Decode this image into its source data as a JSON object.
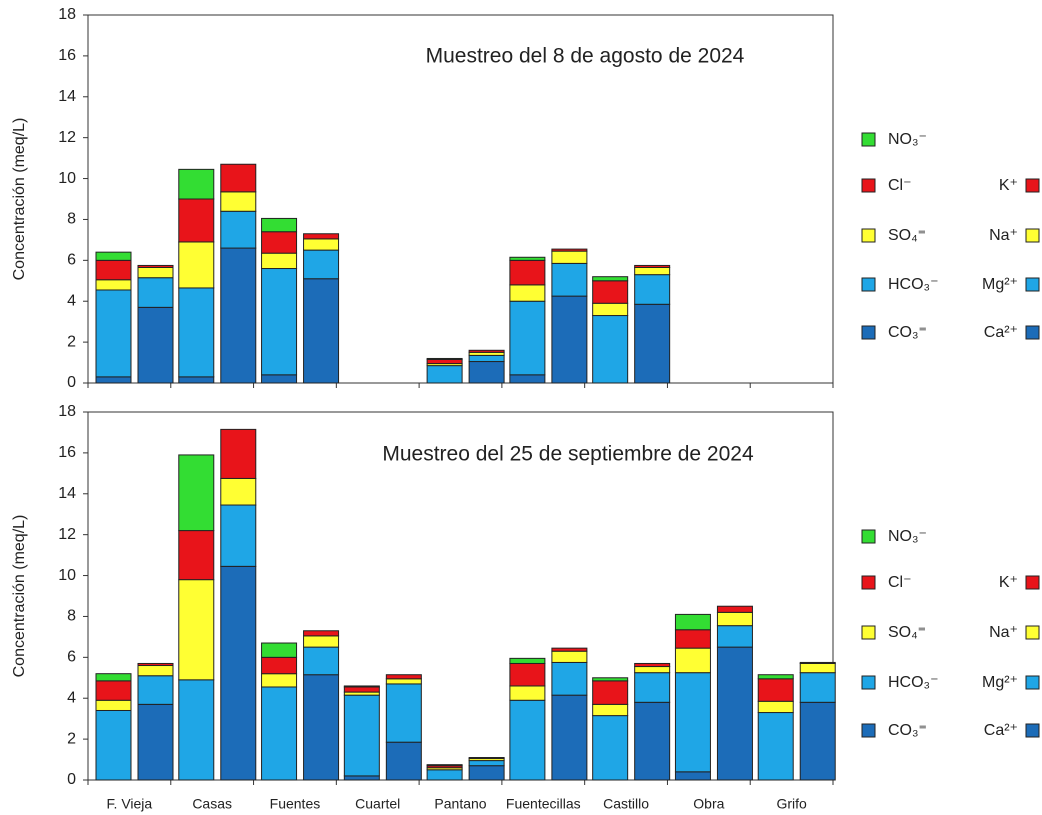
{
  "chart_data": [
    {
      "type": "stacked_bar_pair",
      "title": "Muestreo del 8 de agosto de 2024",
      "ylabel": "Concentración (meq/L)",
      "ylim": [
        0,
        18
      ],
      "yticks": [
        0,
        2,
        4,
        6,
        8,
        10,
        12,
        14,
        16,
        18
      ],
      "anion_series": [
        {
          "name": "CO₃⁼",
          "color": "#1c6cb8",
          "values": [
            0.3,
            0.3,
            0.4,
            null,
            0,
            0.4,
            0,
            null,
            null
          ]
        },
        {
          "name": "HCO₃⁻",
          "color": "#1fa6e6",
          "values": [
            4.25,
            4.35,
            5.2,
            null,
            0.85,
            3.6,
            3.3,
            null,
            null
          ]
        },
        {
          "name": "SO₄⁼",
          "color": "#ffff33",
          "values": [
            0.5,
            2.25,
            0.75,
            null,
            0.1,
            0.8,
            0.6,
            null,
            null
          ]
        },
        {
          "name": "Cl⁻",
          "color": "#e8141a",
          "values": [
            0.95,
            2.1,
            1.05,
            null,
            0.2,
            1.2,
            1.1,
            null,
            null
          ]
        },
        {
          "name": "NO₃⁻",
          "color": "#33dd33",
          "values": [
            0.4,
            1.45,
            0.65,
            null,
            0.05,
            0.15,
            0.2,
            null,
            null
          ]
        }
      ],
      "cation_series": [
        {
          "name": "Ca²⁺",
          "color": "#1c6cb8",
          "values": [
            3.7,
            6.6,
            5.1,
            null,
            1.05,
            4.25,
            3.85,
            null,
            null
          ]
        },
        {
          "name": "Mg²⁺",
          "color": "#1fa6e6",
          "values": [
            1.45,
            1.8,
            1.4,
            null,
            0.3,
            1.6,
            1.45,
            null,
            null
          ]
        },
        {
          "name": "Na⁺",
          "color": "#ffff33",
          "values": [
            0.5,
            0.95,
            0.55,
            null,
            0.15,
            0.6,
            0.35,
            null,
            null
          ]
        },
        {
          "name": "K⁺",
          "color": "#e8141a",
          "values": [
            0.1,
            1.35,
            0.25,
            null,
            0.1,
            0.1,
            0.1,
            null,
            null
          ]
        }
      ]
    },
    {
      "type": "stacked_bar_pair",
      "title": "Muestreo del 25 de septiembre de 2024",
      "ylabel": "Concentración (meq/L)",
      "categories": [
        "F. Vieja",
        "Casas",
        "Fuentes",
        "Cuartel",
        "Pantano",
        "Fuentecillas",
        "Castillo",
        "Obra",
        "Grifo"
      ],
      "ylim": [
        0,
        18
      ],
      "yticks": [
        0,
        2,
        4,
        6,
        8,
        10,
        12,
        14,
        16,
        18
      ],
      "anion_series": [
        {
          "name": "CO₃⁼",
          "color": "#1c6cb8",
          "values": [
            0,
            0,
            0,
            0.2,
            0,
            0,
            0,
            0.4,
            0
          ]
        },
        {
          "name": "HCO₃⁻",
          "color": "#1fa6e6",
          "values": [
            3.4,
            4.9,
            4.55,
            3.95,
            0.5,
            3.9,
            3.15,
            4.85,
            3.3
          ]
        },
        {
          "name": "SO₄⁼",
          "color": "#ffff33",
          "values": [
            0.5,
            4.9,
            0.65,
            0.15,
            0.1,
            0.7,
            0.55,
            1.2,
            0.55
          ]
        },
        {
          "name": "Cl⁻",
          "color": "#e8141a",
          "values": [
            0.95,
            2.4,
            0.8,
            0.25,
            0.1,
            1.1,
            1.15,
            0.9,
            1.1
          ]
        },
        {
          "name": "NO₃⁻",
          "color": "#33dd33",
          "values": [
            0.35,
            3.7,
            0.7,
            0.05,
            0.05,
            0.25,
            0.15,
            0.75,
            0.2
          ]
        }
      ],
      "cation_series": [
        {
          "name": "Ca²⁺",
          "color": "#1c6cb8",
          "values": [
            3.7,
            10.45,
            5.15,
            1.85,
            0.7,
            4.15,
            3.8,
            6.5,
            3.8
          ]
        },
        {
          "name": "Mg²⁺",
          "color": "#1fa6e6",
          "values": [
            1.4,
            3.0,
            1.35,
            2.85,
            0.25,
            1.6,
            1.45,
            1.05,
            1.45
          ]
        },
        {
          "name": "Na⁺",
          "color": "#ffff33",
          "values": [
            0.5,
            1.3,
            0.55,
            0.25,
            0.1,
            0.55,
            0.3,
            0.65,
            0.45
          ]
        },
        {
          "name": "K⁺",
          "color": "#e8141a",
          "values": [
            0.1,
            2.4,
            0.25,
            0.2,
            0.05,
            0.15,
            0.15,
            0.3,
            0.05
          ]
        }
      ]
    }
  ]
}
